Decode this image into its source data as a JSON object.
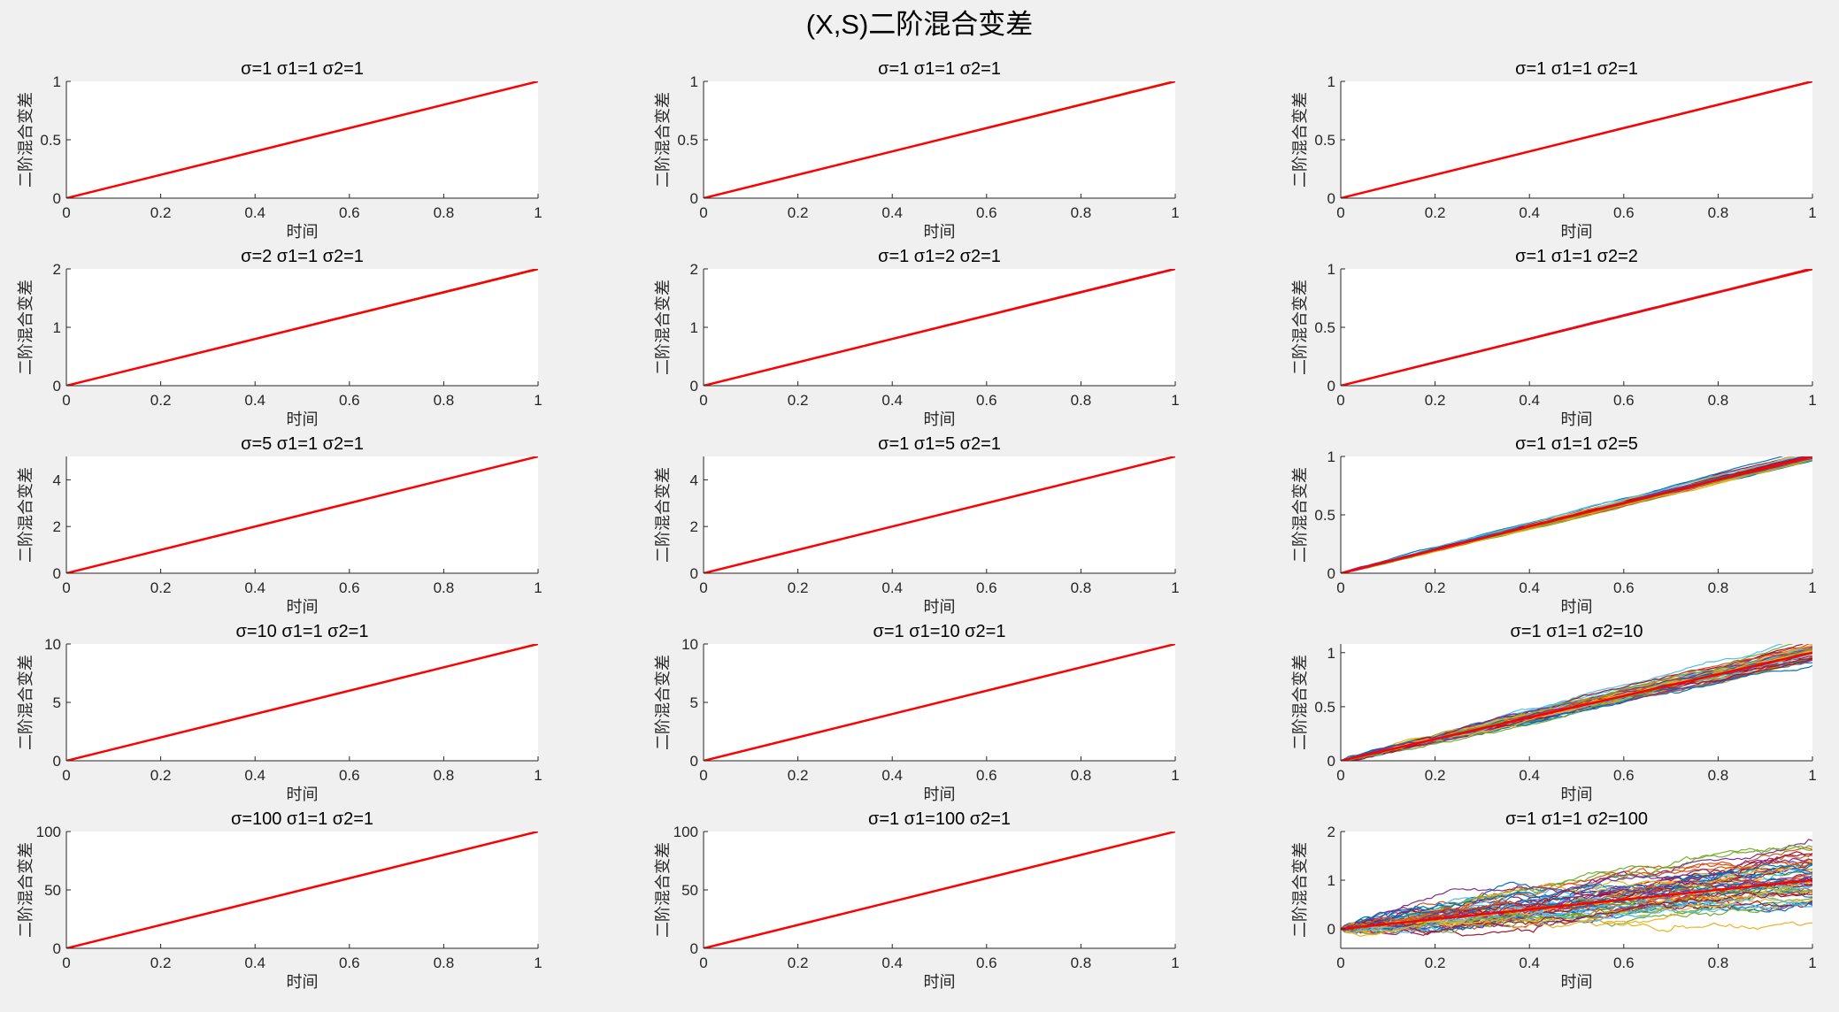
{
  "figure": {
    "title": "(X,S)二阶混合变差",
    "xlabel": "时间",
    "ylabel": "二阶混合变差"
  },
  "chart_data": [
    {
      "type": "line",
      "title": "σ=1  σ1=1  σ2=1",
      "xlim": [
        0,
        1
      ],
      "ylim": [
        0,
        1
      ],
      "xticks": [
        "0",
        "0.2",
        "0.4",
        "0.6",
        "0.8",
        "1"
      ],
      "yticks": [
        "0",
        "0.5",
        "1"
      ],
      "slope": 1,
      "noise": 0.002
    },
    {
      "type": "line",
      "title": "σ=1  σ1=1  σ2=1",
      "xlim": [
        0,
        1
      ],
      "ylim": [
        0,
        1
      ],
      "xticks": [
        "0",
        "0.2",
        "0.4",
        "0.6",
        "0.8",
        "1"
      ],
      "yticks": [
        "0",
        "0.5",
        "1"
      ],
      "slope": 1,
      "noise": 0.003
    },
    {
      "type": "line",
      "title": "σ=1  σ1=1  σ2=1",
      "xlim": [
        0,
        1
      ],
      "ylim": [
        0,
        1
      ],
      "xticks": [
        "0",
        "0.2",
        "0.4",
        "0.6",
        "0.8",
        "1"
      ],
      "yticks": [
        "0",
        "0.5",
        "1"
      ],
      "slope": 1,
      "noise": 0.003
    },
    {
      "type": "line",
      "title": "σ=2  σ1=1  σ2=1",
      "xlim": [
        0,
        1
      ],
      "ylim": [
        0,
        2
      ],
      "xticks": [
        "0",
        "0.2",
        "0.4",
        "0.6",
        "0.8",
        "1"
      ],
      "yticks": [
        "0",
        "1",
        "2"
      ],
      "slope": 2,
      "noise": 0.003
    },
    {
      "type": "line",
      "title": "σ=1  σ1=2  σ2=1",
      "xlim": [
        0,
        1
      ],
      "ylim": [
        0,
        2
      ],
      "xticks": [
        "0",
        "0.2",
        "0.4",
        "0.6",
        "0.8",
        "1"
      ],
      "yticks": [
        "0",
        "1",
        "2"
      ],
      "slope": 2,
      "noise": 0.003
    },
    {
      "type": "line",
      "title": "σ=1  σ1=1  σ2=2",
      "xlim": [
        0,
        1
      ],
      "ylim": [
        0,
        1
      ],
      "xticks": [
        "0",
        "0.2",
        "0.4",
        "0.6",
        "0.8",
        "1"
      ],
      "yticks": [
        "0",
        "0.5",
        "1"
      ],
      "slope": 1,
      "noise": 0.006
    },
    {
      "type": "line",
      "title": "σ=5  σ1=1  σ2=1",
      "xlim": [
        0,
        1
      ],
      "ylim": [
        0,
        5
      ],
      "xticks": [
        "0",
        "0.2",
        "0.4",
        "0.6",
        "0.8",
        "1"
      ],
      "yticks": [
        "0",
        "2",
        "4"
      ],
      "slope": 5,
      "noise": 0.002
    },
    {
      "type": "line",
      "title": "σ=1  σ1=5  σ2=1",
      "xlim": [
        0,
        1
      ],
      "ylim": [
        0,
        5
      ],
      "xticks": [
        "0",
        "0.2",
        "0.4",
        "0.6",
        "0.8",
        "1"
      ],
      "yticks": [
        "0",
        "2",
        "4"
      ],
      "slope": 5,
      "noise": 0.002
    },
    {
      "type": "line",
      "title": "σ=1  σ1=1  σ2=5",
      "xlim": [
        0,
        1
      ],
      "ylim": [
        0,
        1
      ],
      "xticks": [
        "0",
        "0.2",
        "0.4",
        "0.6",
        "0.8",
        "1"
      ],
      "yticks": [
        "0",
        "0.5",
        "1"
      ],
      "slope": 1,
      "noise": 0.02
    },
    {
      "type": "line",
      "title": "σ=10  σ1=1  σ2=1",
      "xlim": [
        0,
        1
      ],
      "ylim": [
        0,
        10
      ],
      "xticks": [
        "0",
        "0.2",
        "0.4",
        "0.6",
        "0.8",
        "1"
      ],
      "yticks": [
        "0",
        "5",
        "10"
      ],
      "slope": 10,
      "noise": 0.002
    },
    {
      "type": "line",
      "title": "σ=1  σ1=10  σ2=1",
      "xlim": [
        0,
        1
      ],
      "ylim": [
        0,
        10
      ],
      "xticks": [
        "0",
        "0.2",
        "0.4",
        "0.6",
        "0.8",
        "1"
      ],
      "yticks": [
        "0",
        "5",
        "10"
      ],
      "slope": 10,
      "noise": 0.002
    },
    {
      "type": "line",
      "title": "σ=1  σ1=1  σ2=10",
      "xlim": [
        0,
        1
      ],
      "ylim": [
        0,
        1.08
      ],
      "xticks": [
        "0",
        "0.2",
        "0.4",
        "0.6",
        "0.8",
        "1"
      ],
      "yticks": [
        "0",
        "0.5",
        "1"
      ],
      "slope": 1,
      "noise": 0.06
    },
    {
      "type": "line",
      "title": "σ=100  σ1=1  σ2=1",
      "xlim": [
        0,
        1
      ],
      "ylim": [
        0,
        100
      ],
      "xticks": [
        "0",
        "0.2",
        "0.4",
        "0.6",
        "0.8",
        "1"
      ],
      "yticks": [
        "0",
        "50",
        "100"
      ],
      "slope": 100,
      "noise": 0.002
    },
    {
      "type": "line",
      "title": "σ=1  σ1=100  σ2=1",
      "xlim": [
        0,
        1
      ],
      "ylim": [
        0,
        100
      ],
      "xticks": [
        "0",
        "0.2",
        "0.4",
        "0.6",
        "0.8",
        "1"
      ],
      "yticks": [
        "0",
        "50",
        "100"
      ],
      "slope": 100,
      "noise": 0.002
    },
    {
      "type": "line",
      "title": "σ=1  σ1=1  σ2=100",
      "xlim": [
        0,
        1
      ],
      "ylim": [
        -0.4,
        2
      ],
      "xticks": [
        "0",
        "0.2",
        "0.4",
        "0.6",
        "0.8",
        "1"
      ],
      "yticks": [
        "0",
        "1",
        "2"
      ],
      "slope": 1,
      "noise": 0.35
    }
  ],
  "series_colors": [
    "#0072bd",
    "#d95319",
    "#edb120",
    "#7e2f8e",
    "#77ac30",
    "#4dbeee",
    "#a2142f"
  ],
  "reference_color": "#ff0000"
}
